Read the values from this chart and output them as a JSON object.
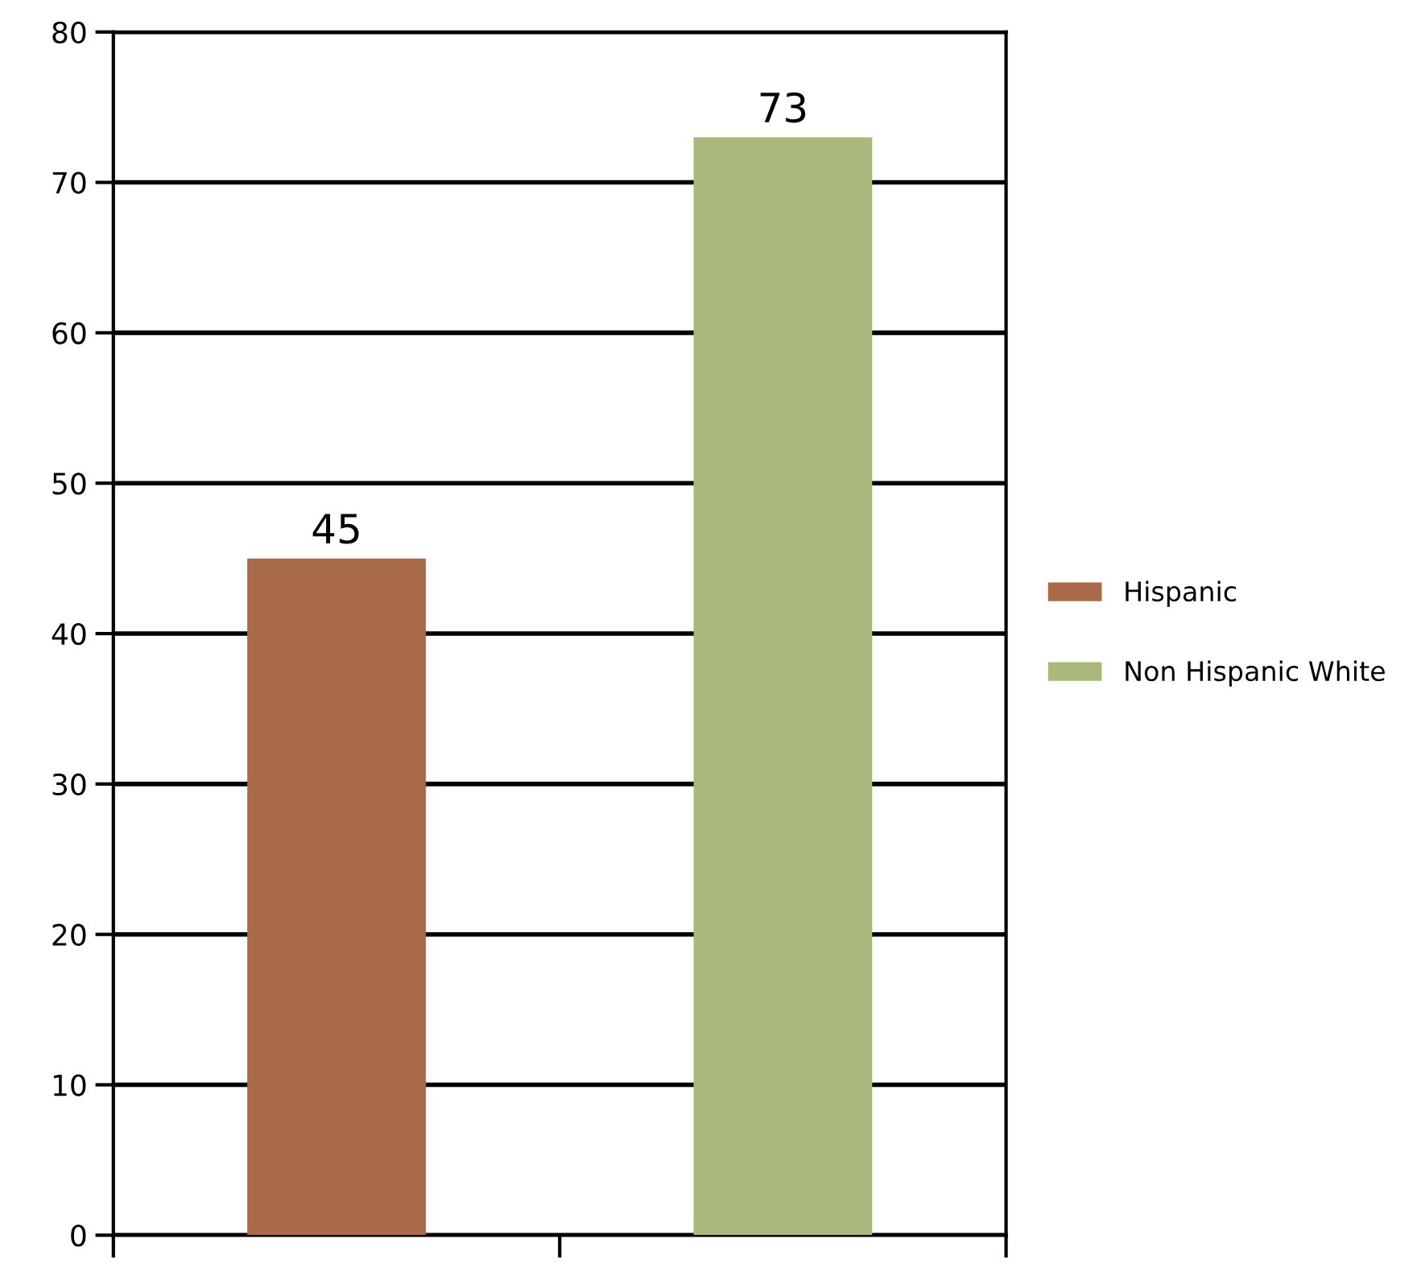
{
  "chart_data": {
    "type": "bar",
    "categories": [
      null,
      null
    ],
    "series": [
      {
        "name": "Hispanic",
        "color": "#a86a48",
        "values": [
          45,
          null
        ]
      },
      {
        "name": "Non Hispanic White",
        "color": "#a9b97c",
        "values": [
          null,
          73
        ]
      }
    ],
    "ylim": [
      0,
      80
    ],
    "yticks": [
      0,
      10,
      20,
      30,
      40,
      50,
      60,
      70,
      80
    ],
    "grid": "y",
    "legend": "right",
    "data_labels": true
  }
}
